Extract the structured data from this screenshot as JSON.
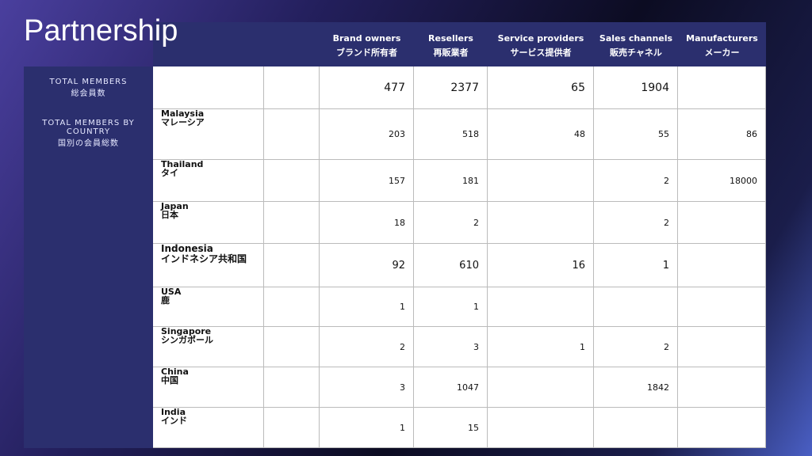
{
  "title": "Partnership",
  "side": {
    "total_label": "TOTAL MEMBERS",
    "total_label_ja": "総会員数",
    "country_label": "TOTAL MEMBERS BY COUNTRY",
    "country_label_ja": "国別の会員総数"
  },
  "table": {
    "columns": [
      {
        "name": "Brand owners",
        "name_ja": "ブランド所有者"
      },
      {
        "name": "Resellers",
        "name_ja": "再販業者"
      },
      {
        "name": "Service providers",
        "name_ja": "サービス提供者"
      },
      {
        "name": "Sales channels",
        "name_ja": "販売チャネル"
      },
      {
        "name": "Manufacturers",
        "name_ja": "メーカー"
      }
    ],
    "totals": [
      477,
      2377,
      65,
      1904,
      null
    ],
    "rows": [
      {
        "name": "Malaysia",
        "name_ja": "マレーシア",
        "values": [
          203,
          518,
          48,
          55,
          86
        ]
      },
      {
        "name": "Thailand",
        "name_ja": "タイ",
        "values": [
          157,
          181,
          null,
          2,
          18000
        ]
      },
      {
        "name": "Japan",
        "name_ja": "日本",
        "values": [
          18,
          2,
          null,
          2,
          null
        ]
      },
      {
        "name": "Indonesia",
        "name_ja": "インドネシア共和国",
        "values": [
          92,
          610,
          16,
          1,
          null
        ]
      },
      {
        "name": "USA",
        "name_ja": "鹿",
        "values": [
          1,
          1,
          null,
          null,
          null
        ]
      },
      {
        "name": "Singapore",
        "name_ja": "シンガポール",
        "values": [
          2,
          3,
          1,
          2,
          null
        ]
      },
      {
        "name": "China",
        "name_ja": "中国",
        "values": [
          3,
          1047,
          null,
          1842,
          null
        ]
      },
      {
        "name": "India",
        "name_ja": "インド",
        "values": [
          1,
          15,
          null,
          null,
          null
        ]
      }
    ]
  }
}
